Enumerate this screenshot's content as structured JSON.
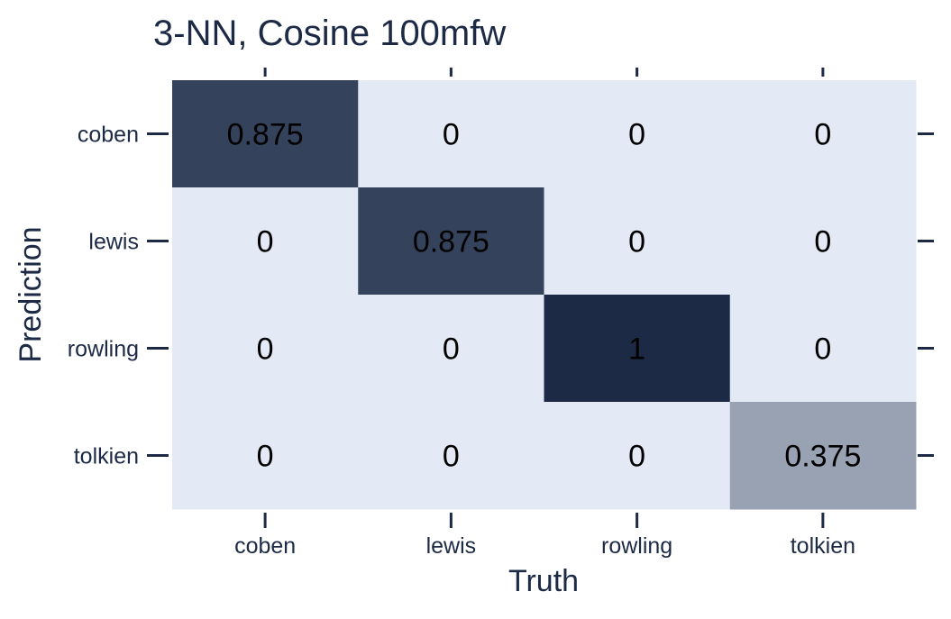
{
  "chart_data": {
    "type": "heatmap",
    "title": "3-NN, Cosine 100mfw",
    "xlabel": "Truth",
    "ylabel": "Prediction",
    "x_categories": [
      "coben",
      "lewis",
      "rowling",
      "tolkien"
    ],
    "y_categories": [
      "coben",
      "lewis",
      "rowling",
      "tolkien"
    ],
    "values": [
      [
        0.875,
        0,
        0,
        0
      ],
      [
        0,
        0.875,
        0,
        0
      ],
      [
        0,
        0,
        1,
        0
      ],
      [
        0,
        0,
        0,
        0.375
      ]
    ],
    "value_labels": [
      [
        "0.875",
        "0",
        "0",
        "0"
      ],
      [
        "0",
        "0.875",
        "0",
        "0"
      ],
      [
        "0",
        "0",
        "1",
        "0"
      ],
      [
        "0",
        "0",
        "0",
        "0.375"
      ]
    ],
    "value_range": [
      0,
      1
    ],
    "color_low": "#e4eaf5",
    "color_high": "#1c2a45",
    "grid": false,
    "legend": "none"
  },
  "colors": {
    "text": "#1c2a45",
    "cell_text": "#000000",
    "tick": "#1c2a45"
  }
}
